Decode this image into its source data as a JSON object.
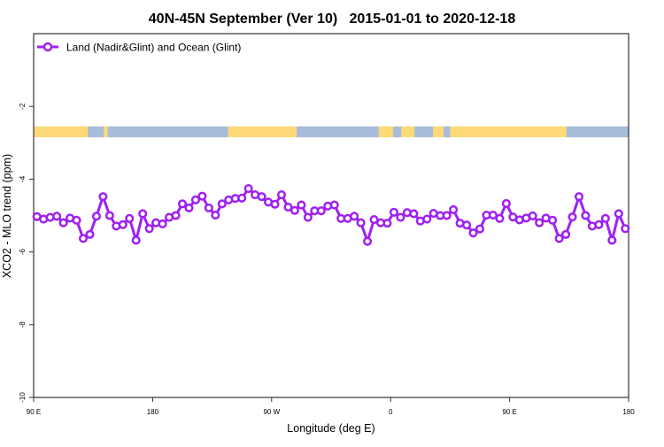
{
  "chart_data": {
    "type": "line",
    "title": "40N-45N September (Ver 10)   2015-01-01 to 2020-12-18",
    "xlabel": "Longitude (deg E)",
    "ylabel": "XCO2 - MLO trend (ppm)",
    "xlim": [
      90,
      540
    ],
    "ylim": [
      -10,
      0
    ],
    "x_ticks": [
      {
        "value": 90,
        "label": "90 E"
      },
      {
        "value": 180,
        "label": "180"
      },
      {
        "value": 270,
        "label": "90 W"
      },
      {
        "value": 360,
        "label": "0"
      },
      {
        "value": 450,
        "label": "90 E"
      },
      {
        "value": 540,
        "label": "180"
      }
    ],
    "y_ticks": [
      {
        "value": -2,
        "label": "-2"
      },
      {
        "value": -4,
        "label": "-4"
      },
      {
        "value": -6,
        "label": "-6"
      },
      {
        "value": -8,
        "label": "-8"
      },
      {
        "value": -10,
        "label": "-10"
      }
    ],
    "grid": false,
    "legend_placement": "top-left",
    "colors": {
      "series": "#a020f0",
      "land": "#fdd978",
      "ocean": "#a6bddb",
      "axis": "#333333"
    },
    "series": [
      {
        "name": "Land (Nadir&Glint) and Ocean (Glint)",
        "marker": "open-circle",
        "x": [
          92.5,
          97.5,
          102.5,
          107.5,
          112.5,
          117.5,
          122.5,
          127.5,
          132.5,
          137.5,
          142.5,
          147.5,
          152.5,
          157.5,
          162.5,
          167.5,
          172.5,
          177.5,
          182.5,
          187.5,
          192.5,
          197.5,
          202.5,
          207.5,
          212.5,
          217.5,
          222.5,
          227.5,
          232.5,
          237.5,
          242.5,
          247.5,
          252.5,
          257.5,
          262.5,
          267.5,
          272.5,
          277.5,
          282.5,
          287.5,
          292.5,
          297.5,
          302.5,
          307.5,
          312.5,
          317.5,
          322.5,
          327.5,
          332.5,
          337.5,
          342.5,
          347.5,
          352.5,
          357.5,
          362.5,
          367.5,
          372.5,
          377.5,
          382.5,
          387.5,
          392.5,
          397.5,
          402.5,
          407.5,
          412.5,
          417.5,
          422.5,
          427.5,
          432.5,
          437.5,
          442.5,
          447.5,
          452.5,
          457.5,
          462.5,
          467.5,
          472.5,
          477.5,
          482.5,
          487.5,
          492.5,
          497.5,
          502.5,
          507.5,
          512.5,
          517.5,
          522.5,
          527.5,
          532.5,
          537.5
        ],
        "values": [
          -5.03,
          -5.1,
          -5.05,
          -5.02,
          -5.2,
          -5.07,
          -5.13,
          -5.63,
          -5.52,
          -5.02,
          -4.48,
          -5.0,
          -5.29,
          -5.25,
          -5.08,
          -5.68,
          -4.95,
          -5.36,
          -5.2,
          -5.23,
          -5.05,
          -5.0,
          -4.68,
          -4.79,
          -4.57,
          -4.47,
          -4.79,
          -4.99,
          -4.68,
          -4.57,
          -4.53,
          -4.52,
          -4.26,
          -4.43,
          -4.48,
          -4.63,
          -4.69,
          -4.43,
          -4.77,
          -4.86,
          -4.71,
          -5.05,
          -4.87,
          -4.87,
          -4.74,
          -4.71,
          -5.08,
          -5.08,
          -5.02,
          -5.2,
          -5.71,
          -5.11,
          -5.2,
          -5.21,
          -4.91,
          -5.05,
          -4.92,
          -4.95,
          -5.15,
          -5.1,
          -4.94,
          -5.0,
          -5.0,
          -4.84,
          -5.21,
          -5.26,
          -5.48,
          -5.37,
          -4.99,
          -4.99,
          -5.08,
          -4.67,
          -5.04,
          -5.12,
          -5.07,
          -5.01,
          -5.2,
          -5.07,
          -5.13,
          -5.63,
          -5.52,
          -5.04,
          -4.48,
          -5.0,
          -5.29,
          -5.25,
          -5.08,
          -5.68,
          -4.95,
          -5.36
        ]
      }
    ],
    "surface_strip": {
      "value_band": [
        -2.55,
        -2.85
      ],
      "segments": [
        {
          "type": "land",
          "from": 90,
          "to": 131
        },
        {
          "type": "ocean",
          "from": 131,
          "to": 143
        },
        {
          "type": "land",
          "from": 143,
          "to": 146
        },
        {
          "type": "ocean",
          "from": 146,
          "to": 237
        },
        {
          "type": "land",
          "from": 237,
          "to": 289
        },
        {
          "type": "ocean",
          "from": 289,
          "to": 351
        },
        {
          "type": "land",
          "from": 351,
          "to": 362
        },
        {
          "type": "ocean",
          "from": 362,
          "to": 368
        },
        {
          "type": "land",
          "from": 368,
          "to": 378
        },
        {
          "type": "ocean",
          "from": 378,
          "to": 392
        },
        {
          "type": "land",
          "from": 392,
          "to": 400
        },
        {
          "type": "ocean",
          "from": 400,
          "to": 405
        },
        {
          "type": "land",
          "from": 405,
          "to": 493
        },
        {
          "type": "ocean",
          "from": 493,
          "to": 540
        }
      ]
    }
  }
}
